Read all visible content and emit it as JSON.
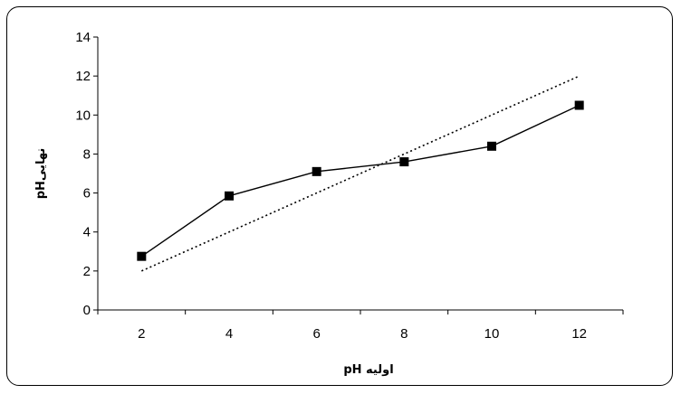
{
  "chart_data": {
    "type": "line",
    "xlabel": "pH اولیه",
    "ylabel": "pHنهایی",
    "x": [
      2,
      4,
      6,
      8,
      10,
      12
    ],
    "xlim": [
      1,
      13
    ],
    "ylim": [
      0,
      14
    ],
    "yticks": [
      0,
      2,
      4,
      6,
      8,
      10,
      12,
      14
    ],
    "xticks": [
      2,
      4,
      6,
      8,
      10,
      12
    ],
    "grid": false,
    "legend": "none",
    "series": [
      {
        "values": [
          2.75,
          5.85,
          7.1,
          7.6,
          8.4,
          10.5
        ],
        "style": "solid",
        "marker": "square",
        "color": "#000000"
      },
      {
        "values": [
          2,
          4,
          6,
          8,
          10,
          12
        ],
        "style": "dotted",
        "marker": "none",
        "color": "#000000"
      }
    ]
  }
}
